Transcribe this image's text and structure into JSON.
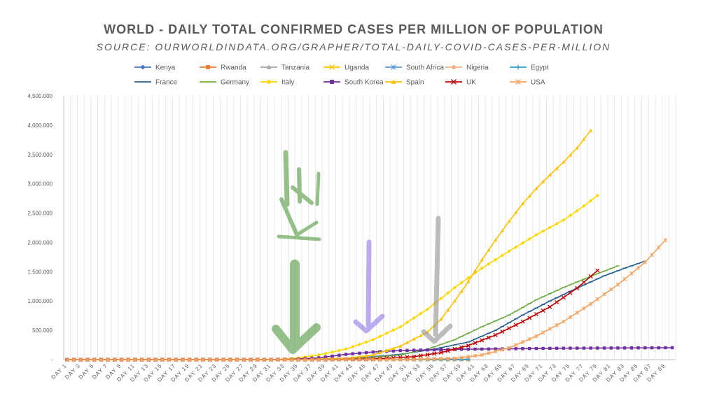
{
  "chart_data": {
    "type": "line",
    "title": "WORLD - DAILY TOTAL CONFIRMED CASES PER MILLION OF POPULATION",
    "subtitle": "SOURCE: OURWORLDINDATA.ORG/GRAPHER/TOTAL-DAILY-COVID-CASES-PER-MILLION",
    "ylim": [
      0,
      4500
    ],
    "y_ticks": [
      0,
      500,
      1000,
      1500,
      2000,
      2500,
      3000,
      3500,
      4000,
      4500
    ],
    "y_tick_labels": [
      "-",
      "500.000",
      "1,000.000",
      "1,500.000",
      "2,000.000",
      "2,500.000",
      "3,000.000",
      "3,500.000",
      "4,000.000",
      "4,500.000"
    ],
    "x_range": [
      1,
      90
    ],
    "x_tick_labels": [
      "DAY 1",
      "DAY 3",
      "DAY 5",
      "DAY 7",
      "DAY 9",
      "DAY 11",
      "DAY 13",
      "DAY 15",
      "DAY 17",
      "DAY 19",
      "DAY 21",
      "DAY 23",
      "DAY 25",
      "DAY 27",
      "DAY 29",
      "DAY 31",
      "DAY 33",
      "DAY 35",
      "DAY 37",
      "DAY 39",
      "DAY 41",
      "DAY 43",
      "DAY 45",
      "DAY 47",
      "DAY 49",
      "DAY 51",
      "DAY 53",
      "DAY 55",
      "DAY 57",
      "DAY 59",
      "DAY 61",
      "DAY 63",
      "DAY 65",
      "DAY 67",
      "DAY 69",
      "DAY 71",
      "DAY 73",
      "DAY 75",
      "DAY 77",
      "DAY 79",
      "DAY 81",
      "DAY 83",
      "DAY 85",
      "DAY 87",
      "DAY 89"
    ],
    "legend": "top",
    "series": [
      {
        "name": "Kenya",
        "color": "#4472C4",
        "marker": "diamond",
        "end": 60,
        "points": [
          [
            1,
            0
          ],
          [
            60,
            1
          ]
        ]
      },
      {
        "name": "Rwanda",
        "color": "#ED7D31",
        "marker": "square",
        "end": 60,
        "points": [
          [
            1,
            0
          ],
          [
            60,
            3
          ]
        ]
      },
      {
        "name": "Tanzania",
        "color": "#A5A5A5",
        "marker": "triangle",
        "end": 60,
        "points": [
          [
            1,
            0
          ],
          [
            60,
            1
          ]
        ]
      },
      {
        "name": "Uganda",
        "color": "#FFC000",
        "marker": "x",
        "end": 60,
        "points": [
          [
            1,
            0
          ],
          [
            60,
            1
          ]
        ]
      },
      {
        "name": "South Africa",
        "color": "#5B9BD5",
        "marker": "star",
        "end": 60,
        "points": [
          [
            1,
            0
          ],
          [
            40,
            0
          ],
          [
            60,
            5
          ]
        ]
      },
      {
        "name": "Nigeria",
        "color": "#F4B183",
        "marker": "circle",
        "end": 60,
        "points": [
          [
            1,
            0
          ],
          [
            60,
            1
          ]
        ]
      },
      {
        "name": "Egypt",
        "color": "#2E9AD0",
        "marker": "plus",
        "end": 60,
        "points": [
          [
            1,
            0
          ],
          [
            60,
            2
          ]
        ]
      },
      {
        "name": "France",
        "color": "#255E91",
        "marker": "dash",
        "end": 86,
        "points": [
          [
            1,
            0
          ],
          [
            36,
            1
          ],
          [
            44,
            30
          ],
          [
            50,
            90
          ],
          [
            55,
            180
          ],
          [
            60,
            300
          ],
          [
            64,
            500
          ],
          [
            68,
            760
          ],
          [
            72,
            1000
          ],
          [
            76,
            1220
          ],
          [
            80,
            1430
          ],
          [
            83,
            1560
          ],
          [
            86,
            1680
          ]
        ]
      },
      {
        "name": "Germany",
        "color": "#70AD47",
        "marker": "dash",
        "end": 82,
        "points": [
          [
            1,
            0
          ],
          [
            36,
            1
          ],
          [
            44,
            20
          ],
          [
            50,
            80
          ],
          [
            54,
            180
          ],
          [
            58,
            340
          ],
          [
            62,
            560
          ],
          [
            66,
            760
          ],
          [
            70,
            1020
          ],
          [
            74,
            1230
          ],
          [
            78,
            1420
          ],
          [
            82,
            1600
          ]
        ]
      },
      {
        "name": "Italy",
        "color": "#FFD700",
        "marker": "diamond",
        "end": 79,
        "points": [
          [
            1,
            0
          ],
          [
            32,
            2
          ],
          [
            35,
            30
          ],
          [
            38,
            80
          ],
          [
            42,
            180
          ],
          [
            46,
            340
          ],
          [
            50,
            560
          ],
          [
            54,
            860
          ],
          [
            58,
            1230
          ],
          [
            62,
            1560
          ],
          [
            66,
            1850
          ],
          [
            70,
            2130
          ],
          [
            74,
            2380
          ],
          [
            77,
            2620
          ],
          [
            79,
            2800
          ]
        ]
      },
      {
        "name": "South Korea",
        "color": "#7030A0",
        "marker": "square",
        "end": 90,
        "points": [
          [
            1,
            0
          ],
          [
            30,
            0
          ],
          [
            34,
            5
          ],
          [
            38,
            30
          ],
          [
            42,
            90
          ],
          [
            46,
            130
          ],
          [
            50,
            155
          ],
          [
            54,
            165
          ],
          [
            58,
            175
          ],
          [
            66,
            185
          ],
          [
            74,
            195
          ],
          [
            90,
            203
          ]
        ]
      },
      {
        "name": "Spain",
        "color": "#FFC000",
        "marker": "triangle",
        "end": 78,
        "points": [
          [
            1,
            0
          ],
          [
            36,
            0
          ],
          [
            42,
            20
          ],
          [
            46,
            80
          ],
          [
            50,
            230
          ],
          [
            54,
            470
          ],
          [
            56,
            690
          ],
          [
            58,
            1000
          ],
          [
            60,
            1330
          ],
          [
            62,
            1700
          ],
          [
            64,
            2040
          ],
          [
            66,
            2360
          ],
          [
            68,
            2660
          ],
          [
            70,
            2920
          ],
          [
            72,
            3150
          ],
          [
            74,
            3370
          ],
          [
            76,
            3610
          ],
          [
            78,
            3910
          ]
        ]
      },
      {
        "name": "UK",
        "color": "#C00000",
        "marker": "x",
        "end": 79,
        "points": [
          [
            1,
            0
          ],
          [
            40,
            0
          ],
          [
            46,
            10
          ],
          [
            52,
            50
          ],
          [
            56,
            120
          ],
          [
            60,
            240
          ],
          [
            64,
            420
          ],
          [
            68,
            650
          ],
          [
            72,
            900
          ],
          [
            76,
            1220
          ],
          [
            79,
            1520
          ]
        ]
      },
      {
        "name": "USA",
        "color": "#F4A460",
        "marker": "star",
        "end": 89,
        "points": [
          [
            1,
            0
          ],
          [
            44,
            0
          ],
          [
            52,
            5
          ],
          [
            58,
            20
          ],
          [
            62,
            80
          ],
          [
            66,
            200
          ],
          [
            70,
            400
          ],
          [
            74,
            650
          ],
          [
            78,
            950
          ],
          [
            82,
            1280
          ],
          [
            86,
            1660
          ],
          [
            89,
            2040
          ]
        ]
      }
    ]
  }
}
